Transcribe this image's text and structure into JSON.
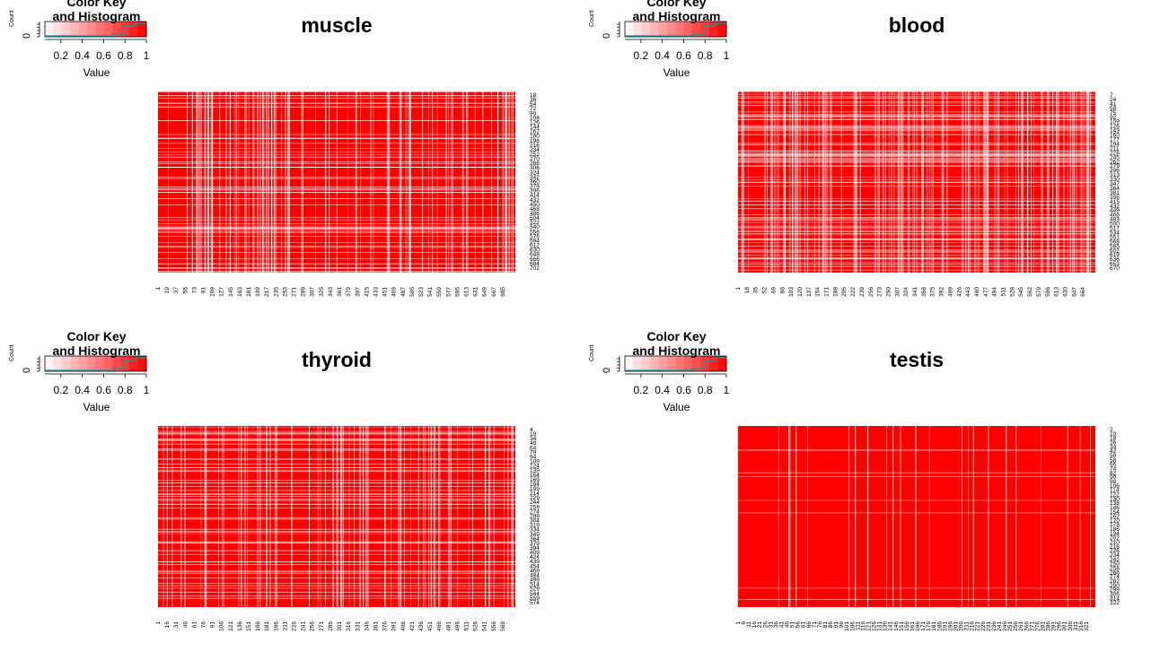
{
  "key": {
    "title_line1": "Color Key",
    "title_line2": "and Histogram",
    "xlabel": "Value",
    "ylabel": "Count",
    "y_tick": "0",
    "ticks": [
      "0.2",
      "0.4",
      "0.6",
      "0.8",
      "1"
    ],
    "tick_values": [
      0.2,
      0.4,
      0.6,
      0.8,
      1.0
    ],
    "range": [
      0.05,
      1.0
    ]
  },
  "colors": {
    "high": "#ff0000",
    "low": "#ffffff",
    "hist_line": "#00a0a0"
  },
  "chart_data": [
    {
      "type": "heatmap",
      "title": "muscle",
      "row_labels": [
        "18",
        "36",
        "54",
        "72",
        "90",
        "108",
        "126",
        "144",
        "162",
        "180",
        "198",
        "216",
        "234",
        "252",
        "270",
        "288",
        "306",
        "324",
        "342",
        "360",
        "378",
        "396",
        "414",
        "432",
        "450",
        "468",
        "486",
        "504",
        "522",
        "540",
        "558",
        "576",
        "594",
        "612",
        "630",
        "648",
        "666",
        "684",
        "702"
      ],
      "col_labels": [
        "1",
        "19",
        "37",
        "55",
        "73",
        "91",
        "109",
        "127",
        "145",
        "163",
        "181",
        "199",
        "217",
        "235",
        "253",
        "271",
        "289",
        "307",
        "325",
        "343",
        "361",
        "379",
        "397",
        "415",
        "433",
        "451",
        "469",
        "487",
        "505",
        "523",
        "541",
        "559",
        "577",
        "595",
        "613",
        "631",
        "649",
        "667",
        "685"
      ],
      "n": 702
    },
    {
      "type": "heatmap",
      "title": "blood",
      "row_labels": [
        "7",
        "24",
        "41",
        "58",
        "75",
        "92",
        "109",
        "126",
        "143",
        "160",
        "177",
        "194",
        "211",
        "228",
        "245",
        "262",
        "279",
        "296",
        "313",
        "330",
        "347",
        "364",
        "381",
        "398",
        "415",
        "432",
        "449",
        "466",
        "483",
        "500",
        "517",
        "534",
        "551",
        "568",
        "585",
        "602",
        "619",
        "636",
        "653",
        "670"
      ],
      "col_labels": [
        "1",
        "18",
        "35",
        "52",
        "69",
        "86",
        "103",
        "120",
        "137",
        "154",
        "171",
        "188",
        "205",
        "222",
        "239",
        "256",
        "273",
        "290",
        "307",
        "324",
        "341",
        "358",
        "375",
        "392",
        "409",
        "426",
        "443",
        "460",
        "477",
        "494",
        "511",
        "528",
        "545",
        "562",
        "579",
        "596",
        "613",
        "630",
        "647",
        "664"
      ],
      "n": 670
    },
    {
      "type": "heatmap",
      "title": "thyroid",
      "row_labels": [
        "4",
        "19",
        "34",
        "49",
        "64",
        "79",
        "94",
        "109",
        "124",
        "139",
        "154",
        "169",
        "184",
        "199",
        "214",
        "229",
        "244",
        "259",
        "274",
        "289",
        "304",
        "319",
        "334",
        "349",
        "364",
        "379",
        "394",
        "409",
        "424",
        "439",
        "454",
        "469",
        "484",
        "499",
        "514",
        "529",
        "544",
        "559",
        "574"
      ],
      "col_labels": [
        "1",
        "16",
        "31",
        "46",
        "61",
        "76",
        "91",
        "106",
        "121",
        "136",
        "151",
        "166",
        "181",
        "196",
        "211",
        "226",
        "241",
        "256",
        "271",
        "286",
        "301",
        "316",
        "331",
        "346",
        "361",
        "376",
        "391",
        "406",
        "421",
        "436",
        "451",
        "466",
        "481",
        "496",
        "511",
        "526",
        "541",
        "556",
        "569"
      ],
      "n": 574
    },
    {
      "type": "heatmap",
      "title": "testis",
      "row_labels": [
        "2",
        "10",
        "18",
        "26",
        "34",
        "42",
        "50",
        "58",
        "66",
        "74",
        "82",
        "90",
        "98",
        "106",
        "114",
        "122",
        "130",
        "138",
        "146",
        "154",
        "162",
        "170",
        "178",
        "186",
        "194",
        "202",
        "210",
        "218",
        "226",
        "234",
        "242",
        "250",
        "258",
        "266",
        "274",
        "282",
        "290",
        "298",
        "306",
        "314",
        "322"
      ],
      "col_labels": [
        "1",
        "6",
        "11",
        "16",
        "21",
        "26",
        "31",
        "36",
        "41",
        "46",
        "51",
        "56",
        "61",
        "66",
        "71",
        "76",
        "81",
        "86",
        "91",
        "96",
        "101",
        "106",
        "111",
        "116",
        "121",
        "126",
        "131",
        "136",
        "141",
        "146",
        "151",
        "156",
        "161",
        "166",
        "171",
        "176",
        "181",
        "186",
        "191",
        "196",
        "201",
        "206",
        "211",
        "216",
        "221",
        "226",
        "231",
        "236",
        "241",
        "246",
        "251",
        "256",
        "261",
        "266",
        "271",
        "276",
        "281",
        "286",
        "291",
        "296",
        "301",
        "306",
        "311",
        "316",
        "321"
      ],
      "n": 322
    }
  ]
}
